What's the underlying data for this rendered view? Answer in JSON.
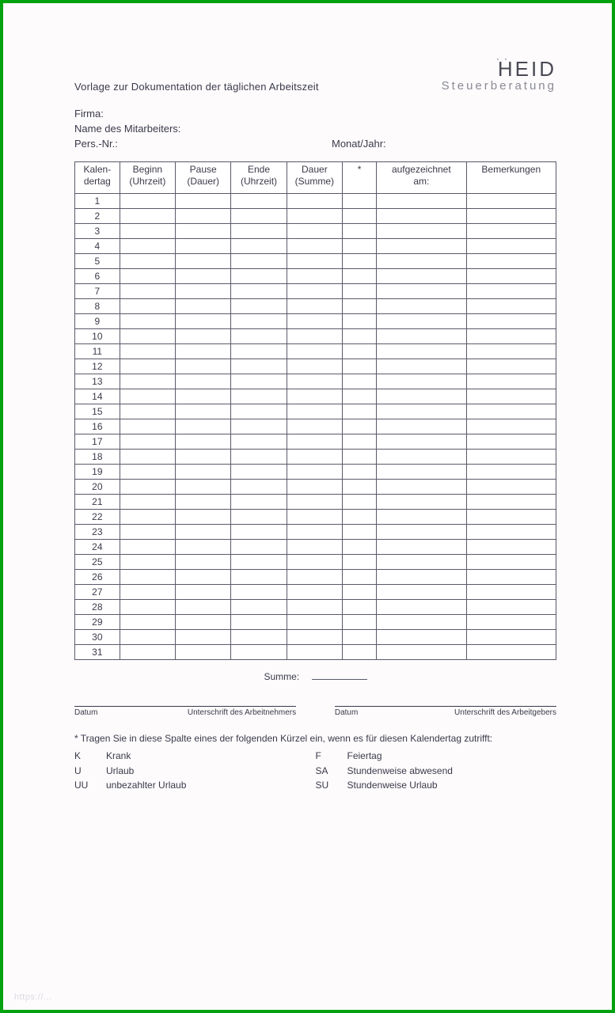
{
  "brand": {
    "name": "HEID",
    "subtitle": "Steuerberatung"
  },
  "title": "Vorlage zur Dokumentation der täglichen Arbeitszeit",
  "fields": {
    "firma_label": "Firma:",
    "name_label": "Name des Mitarbeiters:",
    "persnr_label": "Pers.-Nr.:",
    "monat_label": "Monat/Jahr:"
  },
  "table": {
    "columns": [
      {
        "line1": "Kalen-",
        "line2": "dertag",
        "class": "col-day"
      },
      {
        "line1": "Beginn",
        "line2": "(Uhrzeit)",
        "class": "col-time"
      },
      {
        "line1": "Pause",
        "line2": "(Dauer)",
        "class": "col-time"
      },
      {
        "line1": "Ende",
        "line2": "(Uhrzeit)",
        "class": "col-time"
      },
      {
        "line1": "Dauer",
        "line2": "(Summe)",
        "class": "col-time"
      },
      {
        "line1": "*",
        "line2": "",
        "class": "col-star"
      },
      {
        "line1": "aufgezeichnet",
        "line2": "am:",
        "class": "col-rec"
      },
      {
        "line1": "Bemerkungen",
        "line2": "",
        "class": "col-rem"
      }
    ],
    "num_days": 31,
    "border_color": "#5a5a6a",
    "cell_bg": "#ffffff"
  },
  "summe_label": "Summe:",
  "signatures": {
    "left_date": "Datum",
    "left_sig": "Unterschrift des Arbeitnehmers",
    "right_date": "Datum",
    "right_sig": "Unterschrift des Arbeitgebers"
  },
  "footnote": "* Tragen Sie in diese Spalte eines der folgenden Kürzel ein, wenn es für diesen Kalendertag zutrifft:",
  "legend": {
    "left": [
      {
        "code": "K",
        "text": "Krank"
      },
      {
        "code": "U",
        "text": "Urlaub"
      },
      {
        "code": "UU",
        "text": "unbezahlter Urlaub"
      }
    ],
    "right": [
      {
        "code": "F",
        "text": "Feiertag"
      },
      {
        "code": "SA",
        "text": "Stundenweise abwesend"
      },
      {
        "code": "SU",
        "text": "Stundenweise Urlaub"
      }
    ]
  },
  "colors": {
    "page_bg": "#fdfbfc",
    "frame": "#00a210",
    "text": "#3a3a4a",
    "logo_sub": "#8a8a95"
  },
  "watermark": "https://..."
}
